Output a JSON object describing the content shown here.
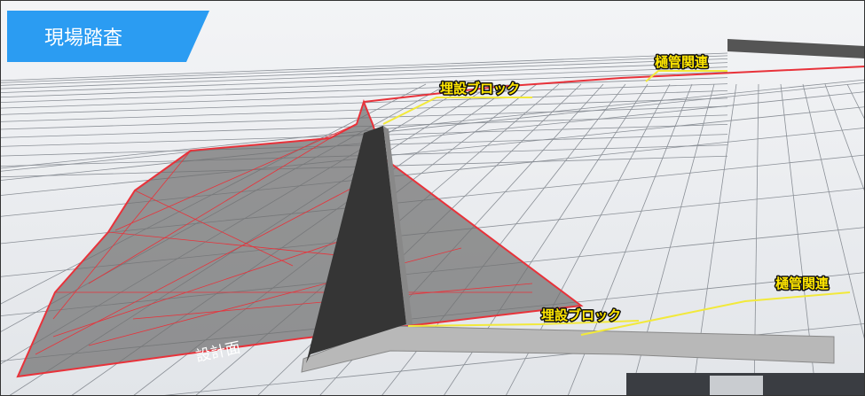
{
  "header": {
    "title": "現場踏査"
  },
  "labels": [
    {
      "text": "樋管関連"
    },
    {
      "text": "埋設ブロック"
    },
    {
      "text": "樋管関連"
    },
    {
      "text": "埋設ブロック"
    },
    {
      "text": "設計面"
    }
  ]
}
